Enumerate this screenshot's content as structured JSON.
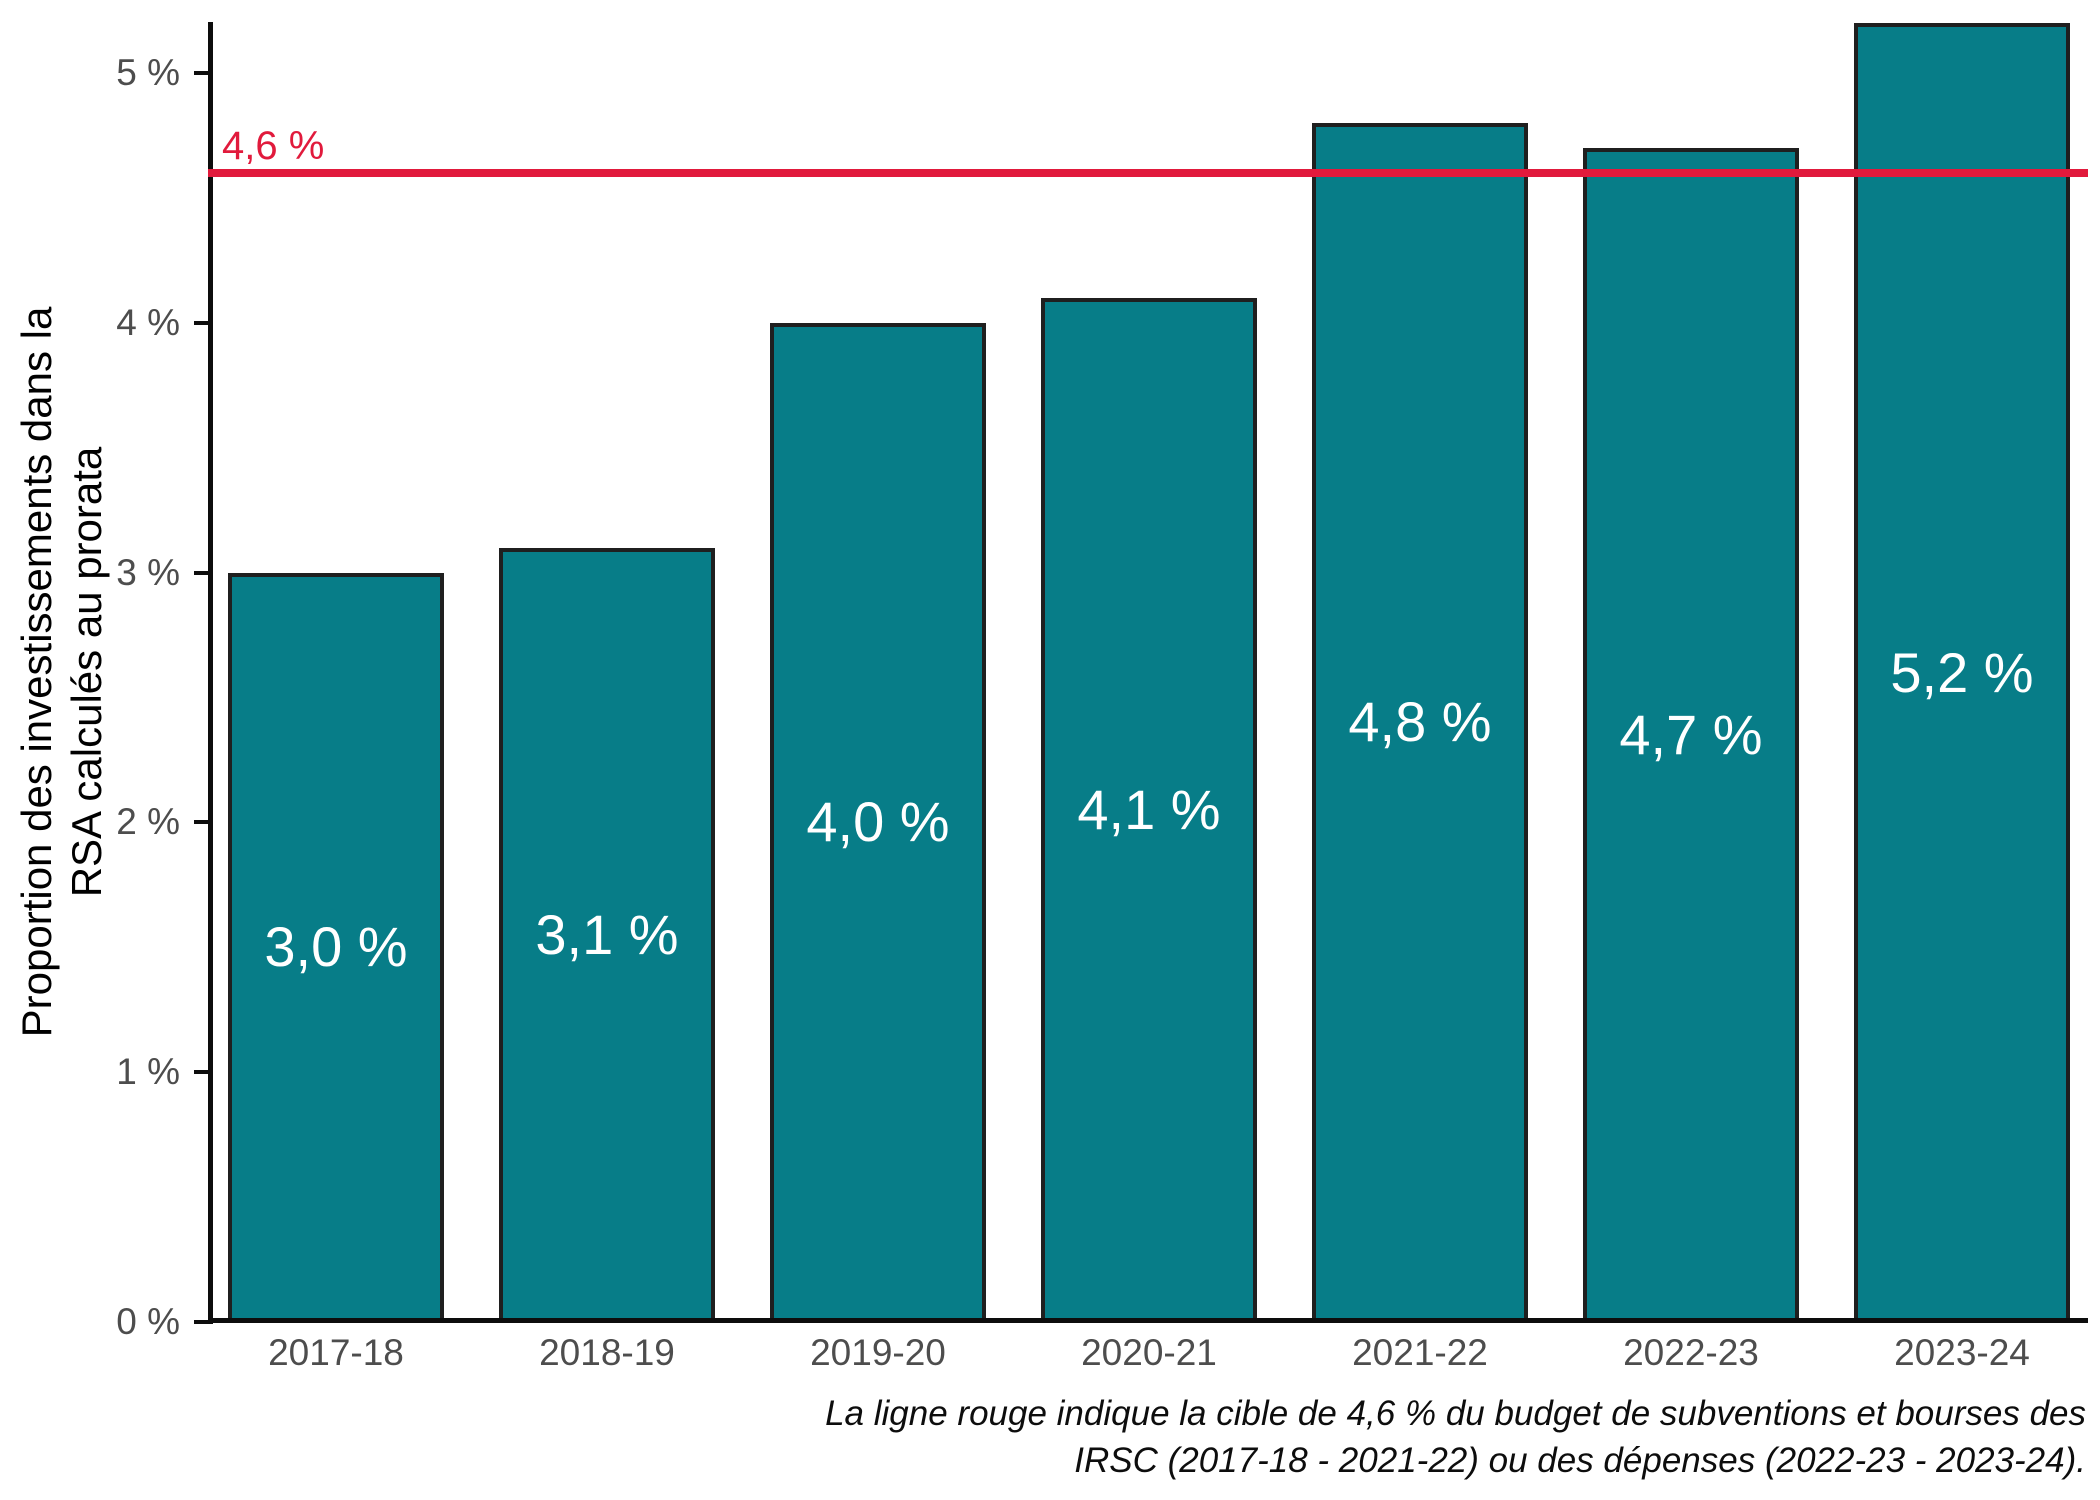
{
  "chart_data": {
    "type": "bar",
    "title": "",
    "xlabel": "",
    "ylabel": "Proportion des investissements dans la RSA calculés au prorata",
    "ylabel_lines": [
      "Proportion des investissements dans la",
      "RSA calculés au prorata"
    ],
    "categories": [
      "2017-18",
      "2018-19",
      "2019-20",
      "2020-21",
      "2021-22",
      "2022-23",
      "2023-24"
    ],
    "values": [
      3.0,
      3.1,
      4.0,
      4.1,
      4.8,
      4.7,
      5.2
    ],
    "bar_labels": [
      "3,0 %",
      "3,1 %",
      "4,0 %",
      "4,1 %",
      "4,8 %",
      "4,7 %",
      "5,2 %"
    ],
    "y_ticks": [
      {
        "value": 0,
        "label": "0 %"
      },
      {
        "value": 1,
        "label": "1 %"
      },
      {
        "value": 2,
        "label": "2 %"
      },
      {
        "value": 3,
        "label": "3 %"
      },
      {
        "value": 4,
        "label": "4 %"
      },
      {
        "value": 5,
        "label": "5 %"
      }
    ],
    "ylim": [
      0,
      5.2
    ],
    "grid": false,
    "legend_position": "none",
    "reference_line": {
      "value": 4.6,
      "label": "4,6 %",
      "color": "#e11a3c"
    },
    "colors": {
      "bar_fill": "#077d88",
      "bar_border": "#1f1f1f",
      "axis_line": "#0d0d0d",
      "tick_label": "#4d4d4d",
      "bar_label_text": "#ffffff",
      "background": "#ffffff"
    },
    "caption_lines": [
      "La ligne rouge indique la cible de 4,6 % du budget de subventions et bourses des",
      "IRSC (2017-18 - 2021-22) ou des dépenses (2022-23 - 2023-24)."
    ]
  }
}
